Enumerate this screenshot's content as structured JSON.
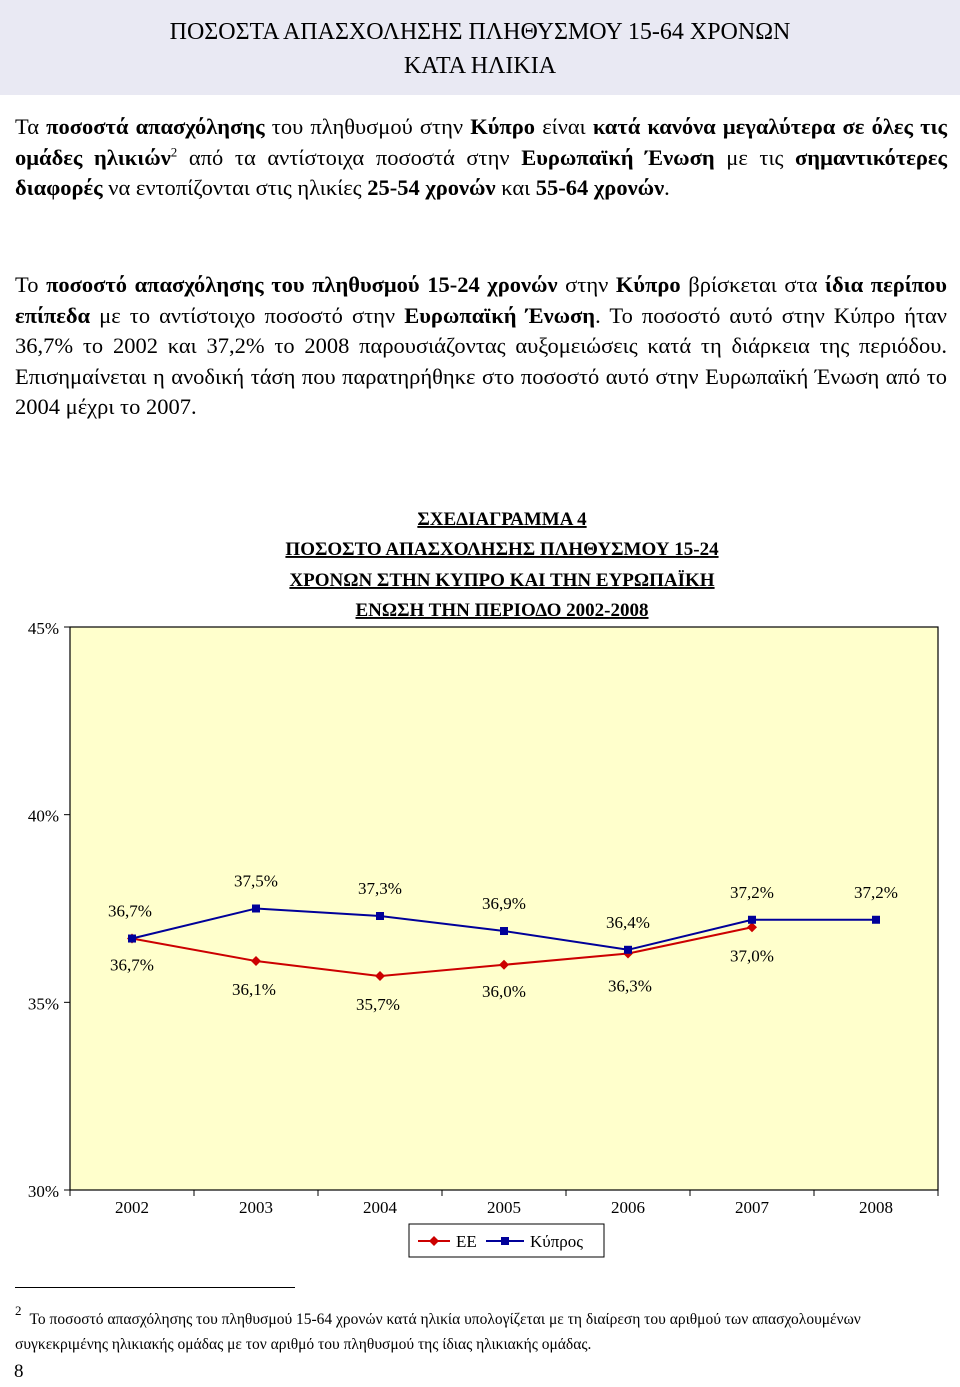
{
  "header": {
    "title_line1": "ΠΟΣΟΣΤΑ ΑΠΑΣΧΟΛΗΣΗΣ ΠΛΗΘΥΣΜΟΥ 15-64 ΧΡΟΝΩΝ",
    "title_line2": "ΚΑΤΑ ΗΛΙΚΙΑ"
  },
  "paragraph1": {
    "s1": "Τα ",
    "s2": "ποσοστά απασχόλησης",
    "s3": " του πληθυσμού στην ",
    "s4": "Κύπρο",
    "s5": " είναι ",
    "s6": "κατά κανόνα μεγαλύτερα σε όλες τις ομάδες ηλικιών",
    "sup": "2",
    "s7": " από τα αντίστοιχα ποσοστά στην ",
    "s8": "Ευρωπαϊκή Ένωση",
    "s9": " με τις ",
    "s10": "σημαντικότερες διαφορές",
    "s11": " να εντοπίζονται στις ηλικίες ",
    "s12": "25-54 χρονών",
    "s13": " και ",
    "s14": "55-64 χρονών",
    "s15": "."
  },
  "paragraph2": {
    "s1": "Το ",
    "s2": "ποσοστό απασχόλησης του πληθυσμού 15-24 χρονών",
    "s3": " στην ",
    "s4": "Κύπρο",
    "s5": " βρίσκεται στα ",
    "s6": "ίδια περίπου επίπεδα",
    "s7": " με το αντίστοιχο ποσοστό στην ",
    "s8": "Ευρωπαϊκή Ένωση",
    "s9": ". Το ποσοστό αυτό στην Κύπρο ήταν 36,7% το 2002 και 37,2% το 2008 παρουσιάζοντας αυξομειώσεις κατά τη διάρκεια της περιόδου. Επισημαίνεται η ανοδική τάση που παρατηρήθηκε στο ποσοστό αυτό στην Ευρωπαϊκή Ένωση από το 2004 μέχρι το 2007."
  },
  "chart_data": {
    "type": "line",
    "title_lines": [
      "ΣΧΕΔΙΑΓΡΑΜΜΑ 4",
      "ΠΟΣΟΣΤΟ ΑΠΑΣΧΟΛΗΣΗΣ ΠΛΗΘΥΣΜΟΥ 15-24",
      "ΧΡΟΝΩΝ ΣΤΗΝ ΚΥΠΡΟ ΚΑΙ ΤΗΝ ΕΥΡΩΠΑΪΚΗ",
      "ΕΝΩΣΗ ΤΗΝ ΠΕΡΙΟΔΟ 2002-2008"
    ],
    "categories": [
      "2002",
      "2003",
      "2004",
      "2005",
      "2006",
      "2007",
      "2008"
    ],
    "ylim": [
      30,
      45
    ],
    "yticks": [
      {
        "value": 45,
        "label": "45%"
      },
      {
        "value": 40,
        "label": "40%"
      },
      {
        "value": 35,
        "label": "35%"
      },
      {
        "value": 30,
        "label": "30%"
      }
    ],
    "grid": false,
    "legend_position": "bottom",
    "plot_background": "#ffffcc",
    "series": [
      {
        "name": "ΕΕ",
        "color": "#cc0000",
        "marker": "diamond",
        "values": [
          36.7,
          36.1,
          35.7,
          36.0,
          36.3,
          37.0,
          null
        ],
        "labels": [
          "36,7%",
          "36,1%",
          "35,7%",
          "36,0%",
          "36,3%",
          "37,0%",
          null
        ]
      },
      {
        "name": "Κύπρος",
        "color": "#000099",
        "marker": "square",
        "values": [
          36.7,
          37.5,
          37.3,
          36.9,
          36.4,
          37.2,
          37.2
        ],
        "labels": [
          "36,7%",
          "37,5%",
          "37,3%",
          "36,9%",
          "36,4%",
          "37,2%",
          "37,2%"
        ]
      }
    ]
  },
  "footnote": {
    "mark": "2",
    "text": "Το ποσοστό απασχόλησης του πληθυσμού 15-64 χρονών κατά ηλικία υπολογίζεται με τη διαίρεση του αριθμού των απασχολουμένων συγκεκριμένης ηλικιακής ομάδας με τον αριθμό του πληθυσμού της ίδιας ηλικιακής ομάδας."
  },
  "page_number": "8"
}
